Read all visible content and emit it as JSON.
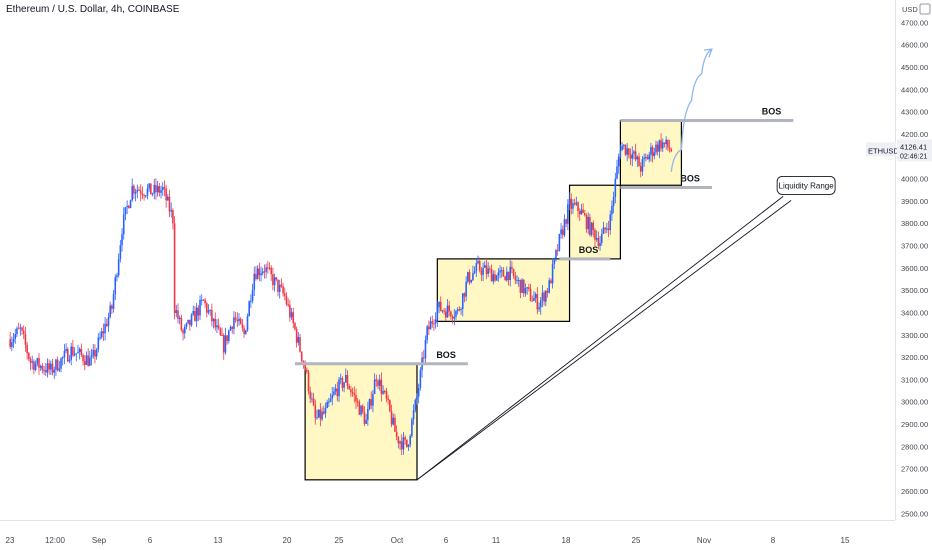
{
  "header": {
    "title": "Ethereum / U.S. Dollar, 4h, COINBASE"
  },
  "price_scale": {
    "currency": "USD",
    "ticks": [
      "4700.00",
      "4600.00",
      "4500.00",
      "4400.00",
      "4300.00",
      "4200.00",
      "4100.00",
      "4000.00",
      "3900.00",
      "3800.00",
      "3700.00",
      "3600.00",
      "3500.00",
      "3400.00",
      "3300.00",
      "3200.00",
      "3100.00",
      "3000.00",
      "2900.00",
      "2800.00",
      "2700.00",
      "2600.00",
      "2500.00"
    ]
  },
  "ticker_label": {
    "symbol": "ETHUSD",
    "price": "4126.41",
    "countdown": "02:46:21"
  },
  "time_axis": {
    "labels": [
      "23",
      "12:00",
      "Sep",
      "6",
      "13",
      "20",
      "25",
      "Oct",
      "6",
      "11",
      "18",
      "25",
      "Nov",
      "8",
      "15"
    ]
  },
  "annotations": {
    "bos_label": "BOS",
    "liquidity_label": "Liquidity Range"
  },
  "colors": {
    "up": "#2962ff",
    "down": "#f23645",
    "box_fill": "#fff8c4",
    "bos_line": "#b2b5be",
    "projection": "#90b6f0"
  },
  "chart_data": {
    "type": "candlestick",
    "title": "Ethereum / U.S. Dollar, 4h, COINBASE",
    "ylim": [
      2470,
      4800
    ],
    "last_price": 4126.41,
    "price_path": [
      [
        "2021-08-22",
        3280
      ],
      [
        "2021-08-23",
        3320
      ],
      [
        "2021-08-24",
        3180
      ],
      [
        "2021-08-26",
        3140
      ],
      [
        "2021-08-28",
        3230
      ],
      [
        "2021-08-30",
        3180
      ],
      [
        "2021-09-01",
        3420
      ],
      [
        "2021-09-02",
        3780
      ],
      [
        "2021-09-03",
        3960
      ],
      [
        "2021-09-05",
        3940
      ],
      [
        "2021-09-06",
        3950
      ],
      [
        "2021-09-07",
        3820
      ],
      [
        "2021-09-07",
        3450
      ],
      [
        "2021-09-08",
        3300
      ],
      [
        "2021-09-10",
        3450
      ],
      [
        "2021-09-12",
        3250
      ],
      [
        "2021-09-13",
        3380
      ],
      [
        "2021-09-14",
        3300
      ],
      [
        "2021-09-15",
        3580
      ],
      [
        "2021-09-16",
        3600
      ],
      [
        "2021-09-18",
        3470
      ],
      [
        "2021-09-19",
        3320
      ],
      [
        "2021-09-20",
        3150
      ],
      [
        "2021-09-21",
        2920
      ],
      [
        "2021-09-22",
        2950
      ],
      [
        "2021-09-23",
        3050
      ],
      [
        "2021-09-24",
        3100
      ],
      [
        "2021-09-26",
        2910
      ],
      [
        "2021-09-27",
        3120
      ],
      [
        "2021-09-28",
        3000
      ],
      [
        "2021-09-29",
        2840
      ],
      [
        "2021-09-30",
        2800
      ],
      [
        "2021-10-01",
        3020
      ],
      [
        "2021-10-02",
        3310
      ],
      [
        "2021-10-03",
        3420
      ],
      [
        "2021-10-05",
        3400
      ],
      [
        "2021-10-06",
        3550
      ],
      [
        "2021-10-07",
        3600
      ],
      [
        "2021-10-09",
        3560
      ],
      [
        "2021-10-10",
        3580
      ],
      [
        "2021-10-12",
        3480
      ],
      [
        "2021-10-13",
        3440
      ],
      [
        "2021-10-14",
        3520
      ],
      [
        "2021-10-15",
        3720
      ],
      [
        "2021-10-16",
        3880
      ],
      [
        "2021-10-17",
        3860
      ],
      [
        "2021-10-18",
        3780
      ],
      [
        "2021-10-19",
        3720
      ],
      [
        "2021-10-20",
        3820
      ],
      [
        "2021-10-21",
        4150
      ],
      [
        "2021-10-22",
        4120
      ],
      [
        "2021-10-23",
        4050
      ],
      [
        "2021-10-24",
        4120
      ],
      [
        "2021-10-25",
        4160
      ],
      [
        "2021-10-26",
        4130
      ]
    ],
    "structure_boxes": [
      {
        "x0": "2021-09-20",
        "x1": "2021-10-01",
        "y0": 2650,
        "y1": 3170
      },
      {
        "x0": "2021-10-03",
        "x1": "2021-10-16",
        "y0": 3360,
        "y1": 3640
      },
      {
        "x0": "2021-10-16",
        "x1": "2021-10-21",
        "y0": 3640,
        "y1": 3970
      },
      {
        "x0": "2021-10-21",
        "x1": "2021-10-27",
        "y0": 3970,
        "y1": 4260
      }
    ],
    "bos_lines": [
      {
        "x0": "2021-09-19",
        "x1": "2021-10-06",
        "y": 3170
      },
      {
        "x0": "2021-10-15",
        "x1": "2021-10-20",
        "y": 3640
      },
      {
        "x0": "2021-10-21",
        "x1": "2021-10-30",
        "y": 3960
      },
      {
        "x0": "2021-10-21",
        "x1": "2021-11-07",
        "y": 4260
      }
    ],
    "liquidity_range_line": {
      "x0": "2021-10-01",
      "y0": 2650,
      "x1": "2021-11-06",
      "y1": 3920
    },
    "projection_path": [
      [
        "2021-10-26",
        4030
      ],
      [
        "2021-10-27",
        4130
      ],
      [
        "2021-10-28",
        4350
      ],
      [
        "2021-10-29",
        4470
      ],
      [
        "2021-10-30",
        4580
      ]
    ]
  }
}
